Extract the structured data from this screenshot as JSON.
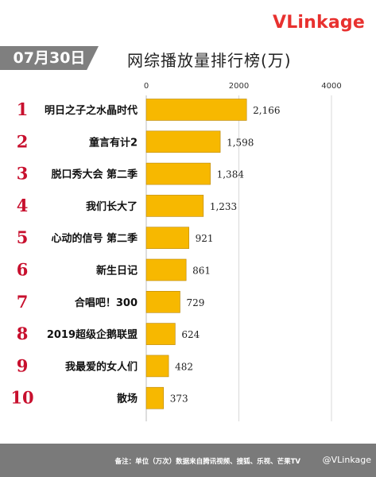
{
  "brand": {
    "part1": "V",
    "part2": "Linkage"
  },
  "date": "07月30日",
  "title": "网综播放量排行榜(万)",
  "chart_data": {
    "type": "bar",
    "orientation": "horizontal",
    "ranks": [
      "1",
      "2",
      "3",
      "4",
      "5",
      "6",
      "7",
      "8",
      "9",
      "10"
    ],
    "categories": [
      "明日之子之水晶时代",
      "童言有计2",
      "脱口秀大会 第二季",
      "我们长大了",
      "心动的信号 第二季",
      "新生日记",
      "合唱吧！300",
      "2019超级企鹅联盟",
      "我最爱的女人们",
      "散场"
    ],
    "values": [
      2166,
      1598,
      1384,
      1233,
      921,
      861,
      729,
      624,
      482,
      373
    ],
    "value_labels": [
      "2,166",
      "1,598",
      "1,384",
      "1,233",
      "921",
      "861",
      "729",
      "624",
      "482",
      "373"
    ],
    "xticks": [
      "0",
      "2000",
      "4000"
    ],
    "xlim": [
      0,
      4000
    ],
    "bar_color": "#f7b800",
    "rank_color": "#c8102e",
    "grid": true
  },
  "footer": {
    "note": "备注：单位（万次）数据来自腾讯视频、搜狐、乐视、芒果TV",
    "watermark": "@VLinkage"
  }
}
